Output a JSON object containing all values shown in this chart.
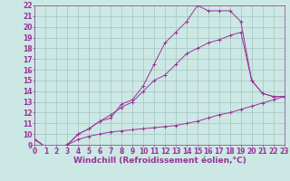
{
  "xlabel": "Windchill (Refroidissement éolien,°C)",
  "bg_color": "#cce8e4",
  "grid_color": "#99bbb8",
  "line_color": "#993399",
  "xlim": [
    0,
    23
  ],
  "ylim": [
    9,
    22
  ],
  "xticks": [
    0,
    1,
    2,
    3,
    4,
    5,
    6,
    7,
    8,
    9,
    10,
    11,
    12,
    13,
    14,
    15,
    16,
    17,
    18,
    19,
    20,
    21,
    22,
    23
  ],
  "yticks": [
    9,
    10,
    11,
    12,
    13,
    14,
    15,
    16,
    17,
    18,
    19,
    20,
    21,
    22
  ],
  "line1_x": [
    0,
    1,
    2,
    3,
    4,
    5,
    6,
    7,
    8,
    9,
    10,
    11,
    12,
    13,
    14,
    15,
    16,
    17,
    18,
    19,
    20,
    21,
    22,
    23
  ],
  "line1_y": [
    9.5,
    8.8,
    8.8,
    9.0,
    9.5,
    9.8,
    10.0,
    10.2,
    10.3,
    10.4,
    10.5,
    10.6,
    10.7,
    10.8,
    11.0,
    11.2,
    11.5,
    11.8,
    12.0,
    12.3,
    12.6,
    12.9,
    13.2,
    13.5
  ],
  "line2_x": [
    0,
    1,
    2,
    3,
    4,
    5,
    6,
    7,
    8,
    9,
    10,
    11,
    12,
    13,
    14,
    15,
    16,
    17,
    18,
    19,
    20,
    21,
    22,
    23
  ],
  "line2_y": [
    9.5,
    8.8,
    8.8,
    9.0,
    10.0,
    10.5,
    11.2,
    11.8,
    12.5,
    13.0,
    14.0,
    15.0,
    15.5,
    16.5,
    17.5,
    18.0,
    18.5,
    18.8,
    19.2,
    19.5,
    15.0,
    13.8,
    13.5,
    13.5
  ],
  "line3_x": [
    0,
    1,
    2,
    3,
    4,
    5,
    6,
    7,
    8,
    9,
    10,
    11,
    12,
    13,
    14,
    15,
    16,
    17,
    18,
    19,
    20,
    21,
    22,
    23
  ],
  "line3_y": [
    9.5,
    8.8,
    8.8,
    9.0,
    10.0,
    10.5,
    11.2,
    11.5,
    12.8,
    13.2,
    14.5,
    16.5,
    18.5,
    19.5,
    20.5,
    22.0,
    21.5,
    21.5,
    21.5,
    20.5,
    15.0,
    13.8,
    13.5,
    13.5
  ],
  "tick_fontsize": 5.5,
  "label_fontsize": 6.5
}
